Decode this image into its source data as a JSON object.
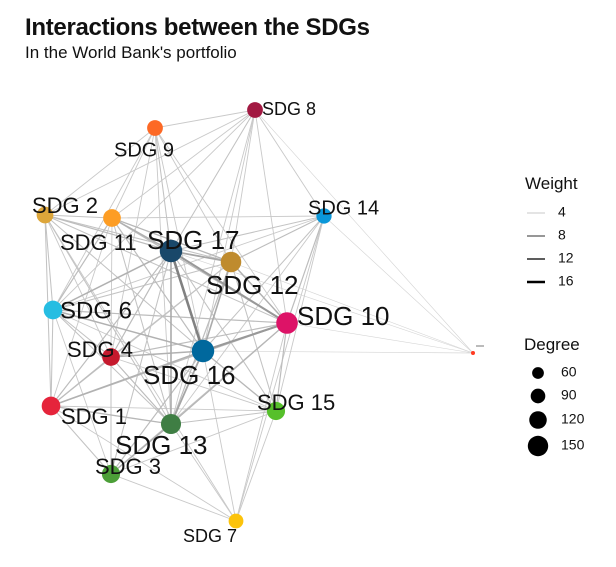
{
  "header": {
    "title": "Interactions between the SDGs",
    "subtitle": "In the World Bank's portfolio"
  },
  "nodes": [
    {
      "id": "SDG 8",
      "label": "SDG 8",
      "color": "#A21942",
      "degree": 60
    },
    {
      "id": "SDG 9",
      "label": "SDG 9",
      "color": "#FD6925",
      "degree": 60
    },
    {
      "id": "SDG 2",
      "label": "SDG 2",
      "color": "#DDA63A",
      "degree": 70
    },
    {
      "id": "SDG 11",
      "label": "SDG 11",
      "color": "#FD9D24",
      "degree": 80
    },
    {
      "id": "SDG 17",
      "label": "SDG 17",
      "color": "#19486A",
      "degree": 130
    },
    {
      "id": "SDG 12",
      "label": "SDG 12",
      "color": "#BF8B2E",
      "degree": 110
    },
    {
      "id": "SDG 14",
      "label": "SDG 14",
      "color": "#0A97D9",
      "degree": 55
    },
    {
      "id": "SDG 6",
      "label": "SDG 6",
      "color": "#26BDE2",
      "degree": 90
    },
    {
      "id": "SDG 10",
      "label": "SDG 10",
      "color": "#DD1367",
      "degree": 120
    },
    {
      "id": "SDG 4",
      "label": "SDG 4",
      "color": "#C5192D",
      "degree": 80
    },
    {
      "id": "SDG 16",
      "label": "SDG 16",
      "color": "#00689D",
      "degree": 130
    },
    {
      "id": "SDG 1",
      "label": "SDG 1",
      "color": "#E5243B",
      "degree": 90
    },
    {
      "id": "SDG 15",
      "label": "SDG 15",
      "color": "#56C02B",
      "degree": 85
    },
    {
      "id": "SDG 13",
      "label": "SDG 13",
      "color": "#3F7E44",
      "degree": 105
    },
    {
      "id": "SDG 3",
      "label": "SDG 3",
      "color": "#4C9F38",
      "degree": 85
    },
    {
      "id": "SDG 7",
      "label": "SDG 7",
      "color": "#FCC30B",
      "degree": 50
    },
    {
      "id": "SDG 5",
      "label": "",
      "color": "#FF3A21",
      "degree": 2
    }
  ],
  "edges": [
    {
      "source": "SDG 17",
      "target": "SDG 16",
      "weight": 16
    },
    {
      "source": "SDG 17",
      "target": "SDG 10",
      "weight": 12
    },
    {
      "source": "SDG 17",
      "target": "SDG 12",
      "weight": 10
    },
    {
      "source": "SDG 16",
      "target": "SDG 10",
      "weight": 12
    },
    {
      "source": "SDG 16",
      "target": "SDG 12",
      "weight": 9
    },
    {
      "source": "SDG 12",
      "target": "SDG 10",
      "weight": 8
    },
    {
      "source": "SDG 17",
      "target": "SDG 6",
      "weight": 8
    },
    {
      "source": "SDG 17",
      "target": "SDG 11",
      "weight": 8
    },
    {
      "source": "SDG 17",
      "target": "SDG 13",
      "weight": 9
    },
    {
      "source": "SDG 16",
      "target": "SDG 13",
      "weight": 10
    },
    {
      "source": "SDG 16",
      "target": "SDG 4",
      "weight": 8
    },
    {
      "source": "SDG 16",
      "target": "SDG 1",
      "weight": 8
    },
    {
      "source": "SDG 16",
      "target": "SDG 15",
      "weight": 7
    },
    {
      "source": "SDG 16",
      "target": "SDG 6",
      "weight": 8
    },
    {
      "source": "SDG 13",
      "target": "SDG 10",
      "weight": 7
    },
    {
      "source": "SDG 13",
      "target": "SDG 3",
      "weight": 8
    },
    {
      "source": "SDG 13",
      "target": "SDG 1",
      "weight": 7
    },
    {
      "source": "SDG 12",
      "target": "SDG 11",
      "weight": 7
    },
    {
      "source": "SDG 6",
      "target": "SDG 11",
      "weight": 6
    },
    {
      "source": "SDG 4",
      "target": "SDG 1",
      "weight": 6
    },
    {
      "source": "SDG 10",
      "target": "SDG 15",
      "weight": 6
    },
    {
      "source": "SDG 10",
      "target": "SDG 14",
      "weight": 6
    },
    {
      "source": "SDG 12",
      "target": "SDG 14",
      "weight": 6
    },
    {
      "source": "SDG 17",
      "target": "SDG 9",
      "weight": 5
    },
    {
      "source": "SDG 17",
      "target": "SDG 8",
      "weight": 5
    },
    {
      "source": "SDG 17",
      "target": "SDG 2",
      "weight": 6
    },
    {
      "source": "SDG 17",
      "target": "SDG 4",
      "weight": 6
    },
    {
      "source": "SDG 17",
      "target": "SDG 1",
      "weight": 6
    },
    {
      "source": "SDG 17",
      "target": "SDG 3",
      "weight": 5
    },
    {
      "source": "SDG 17",
      "target": "SDG 15",
      "weight": 5
    },
    {
      "source": "SDG 17",
      "target": "SDG 14",
      "weight": 5
    },
    {
      "source": "SDG 16",
      "target": "SDG 11",
      "weight": 6
    },
    {
      "source": "SDG 16",
      "target": "SDG 2",
      "weight": 5
    },
    {
      "source": "SDG 16",
      "target": "SDG 3",
      "weight": 6
    },
    {
      "source": "SDG 16",
      "target": "SDG 7",
      "weight": 4
    },
    {
      "source": "SDG 16",
      "target": "SDG 9",
      "weight": 4
    },
    {
      "source": "SDG 16",
      "target": "SDG 8",
      "weight": 4
    },
    {
      "source": "SDG 16",
      "target": "SDG 14",
      "weight": 5
    },
    {
      "source": "SDG 10",
      "target": "SDG 6",
      "weight": 6
    },
    {
      "source": "SDG 10",
      "target": "SDG 4",
      "weight": 6
    },
    {
      "source": "SDG 10",
      "target": "SDG 1",
      "weight": 6
    },
    {
      "source": "SDG 10",
      "target": "SDG 3",
      "weight": 5
    },
    {
      "source": "SDG 10",
      "target": "SDG 11",
      "weight": 6
    },
    {
      "source": "SDG 10",
      "target": "SDG 2",
      "weight": 5
    },
    {
      "source": "SDG 10",
      "target": "SDG 8",
      "weight": 4
    },
    {
      "source": "SDG 10",
      "target": "SDG 9",
      "weight": 4
    },
    {
      "source": "SDG 10",
      "target": "SDG 7",
      "weight": 4
    },
    {
      "source": "SDG 12",
      "target": "SDG 6",
      "weight": 5
    },
    {
      "source": "SDG 12",
      "target": "SDG 13",
      "weight": 6
    },
    {
      "source": "SDG 12",
      "target": "SDG 15",
      "weight": 5
    },
    {
      "source": "SDG 12",
      "target": "SDG 2",
      "weight": 5
    },
    {
      "source": "SDG 12",
      "target": "SDG 8",
      "weight": 4
    },
    {
      "source": "SDG 12",
      "target": "SDG 9",
      "weight": 4
    },
    {
      "source": "SDG 12",
      "target": "SDG 4",
      "weight": 5
    },
    {
      "source": "SDG 12",
      "target": "SDG 1",
      "weight": 5
    },
    {
      "source": "SDG 13",
      "target": "SDG 15",
      "weight": 5
    },
    {
      "source": "SDG 13",
      "target": "SDG 6",
      "weight": 5
    },
    {
      "source": "SDG 13",
      "target": "SDG 4",
      "weight": 6
    },
    {
      "source": "SDG 13",
      "target": "SDG 7",
      "weight": 4
    },
    {
      "source": "SDG 13",
      "target": "SDG 11",
      "weight": 5
    },
    {
      "source": "SDG 13",
      "target": "SDG 2",
      "weight": 5
    },
    {
      "source": "SDG 13",
      "target": "SDG 14",
      "weight": 4
    },
    {
      "source": "SDG 6",
      "target": "SDG 4",
      "weight": 5
    },
    {
      "source": "SDG 6",
      "target": "SDG 1",
      "weight": 5
    },
    {
      "source": "SDG 6",
      "target": "SDG 2",
      "weight": 5
    },
    {
      "source": "SDG 6",
      "target": "SDG 3",
      "weight": 4
    },
    {
      "source": "SDG 6",
      "target": "SDG 9",
      "weight": 4
    },
    {
      "source": "SDG 6",
      "target": "SDG 15",
      "weight": 4
    },
    {
      "source": "SDG 11",
      "target": "SDG 2",
      "weight": 5
    },
    {
      "source": "SDG 11",
      "target": "SDG 9",
      "weight": 4
    },
    {
      "source": "SDG 11",
      "target": "SDG 8",
      "weight": 4
    },
    {
      "source": "SDG 11",
      "target": "SDG 4",
      "weight": 4
    },
    {
      "source": "SDG 11",
      "target": "SDG 1",
      "weight": 4
    },
    {
      "source": "SDG 11",
      "target": "SDG 14",
      "weight": 4
    },
    {
      "source": "SDG 4",
      "target": "SDG 3",
      "weight": 5
    },
    {
      "source": "SDG 4",
      "target": "SDG 2",
      "weight": 4
    },
    {
      "source": "SDG 4",
      "target": "SDG 15",
      "weight": 4
    },
    {
      "source": "SDG 1",
      "target": "SDG 3",
      "weight": 5
    },
    {
      "source": "SDG 1",
      "target": "SDG 2",
      "weight": 5
    },
    {
      "source": "SDG 1",
      "target": "SDG 7",
      "weight": 4
    },
    {
      "source": "SDG 1",
      "target": "SDG 15",
      "weight": 4
    },
    {
      "source": "SDG 3",
      "target": "SDG 15",
      "weight": 4
    },
    {
      "source": "SDG 3",
      "target": "SDG 7",
      "weight": 4
    },
    {
      "source": "SDG 15",
      "target": "SDG 7",
      "weight": 4
    },
    {
      "source": "SDG 15",
      "target": "SDG 14",
      "weight": 4
    },
    {
      "source": "SDG 2",
      "target": "SDG 9",
      "weight": 4
    },
    {
      "source": "SDG 9",
      "target": "SDG 8",
      "weight": 4
    },
    {
      "source": "SDG 8",
      "target": "SDG 14",
      "weight": 4
    },
    {
      "source": "SDG 8",
      "target": "SDG 2",
      "weight": 4
    },
    {
      "source": "SDG 8",
      "target": "SDG 6",
      "weight": 4
    },
    {
      "source": "SDG 8",
      "target": "SDG 13",
      "weight": 4
    },
    {
      "source": "SDG 9",
      "target": "SDG 13",
      "weight": 4
    },
    {
      "source": "SDG 9",
      "target": "SDG 4",
      "weight": 4
    },
    {
      "source": "SDG 14",
      "target": "SDG 6",
      "weight": 4
    },
    {
      "source": "SDG 14",
      "target": "SDG 7",
      "weight": 4
    },
    {
      "source": "SDG 7",
      "target": "SDG 2",
      "weight": 4
    },
    {
      "source": "SDG 5",
      "target": "SDG 17",
      "weight": 2
    },
    {
      "source": "SDG 5",
      "target": "SDG 16",
      "weight": 2
    },
    {
      "source": "SDG 5",
      "target": "SDG 10",
      "weight": 2
    },
    {
      "source": "SDG 5",
      "target": "SDG 14",
      "weight": 2
    },
    {
      "source": "SDG 5",
      "target": "SDG 8",
      "weight": 2
    },
    {
      "source": "SDG 5",
      "target": "SDG 12",
      "weight": 2
    }
  ],
  "legend": {
    "weight": {
      "title": "Weight",
      "items": [
        {
          "value": 4,
          "label": "4"
        },
        {
          "value": 8,
          "label": "8"
        },
        {
          "value": 12,
          "label": "12"
        },
        {
          "value": 16,
          "label": "16"
        }
      ]
    },
    "degree": {
      "title": "Degree",
      "items": [
        {
          "value": 60,
          "label": "60"
        },
        {
          "value": 90,
          "label": "90"
        },
        {
          "value": 120,
          "label": "120"
        },
        {
          "value": 150,
          "label": "150"
        }
      ]
    }
  }
}
